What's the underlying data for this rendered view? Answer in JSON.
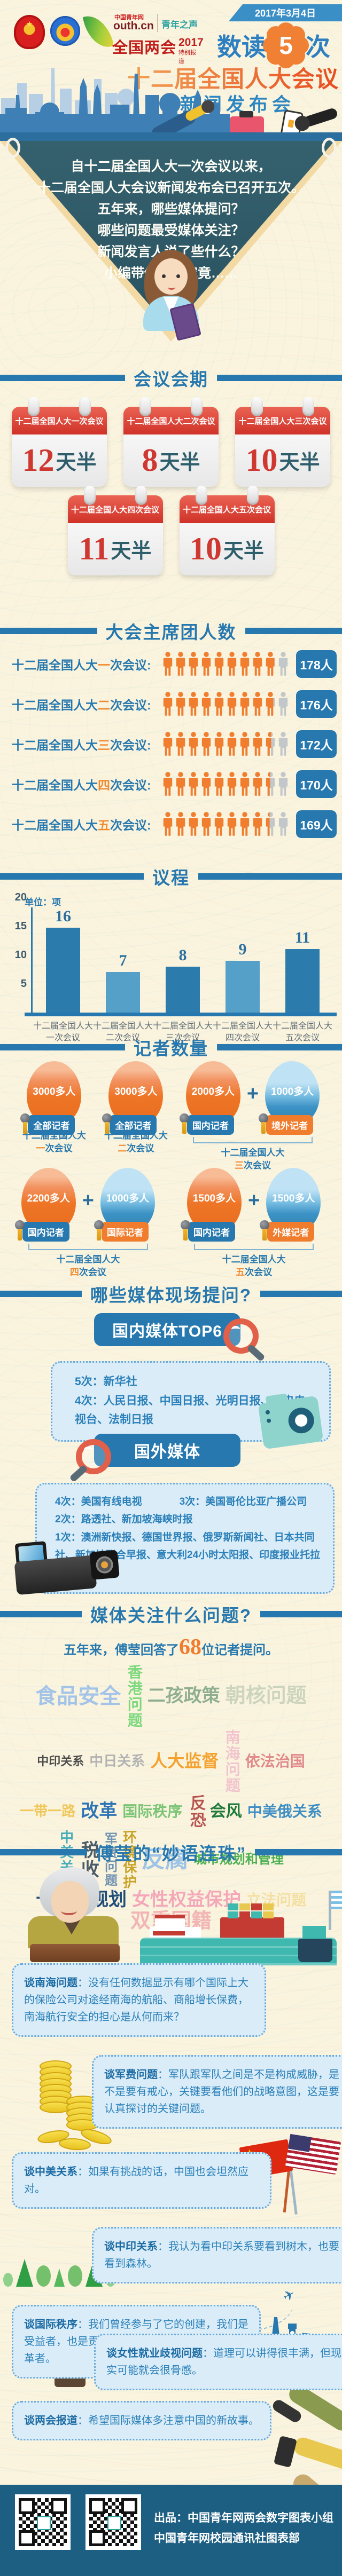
{
  "date": "2017年3月4日",
  "colors": {
    "accent_blue": "#2778ae",
    "accent_orange": "#f07e2e",
    "calendar_red": "#d03228",
    "board_teal": "#2e5f6d",
    "footer_blue": "#1d5f83"
  },
  "logos": {
    "cyw": "中国青年网",
    "youthcn": "outh.cn",
    "voice": "青年之声",
    "lianghui": "全国两会",
    "year": "2017",
    "special": "特别报道"
  },
  "title": {
    "p1": "数读",
    "num": "5",
    "p2": "次",
    "line2": "十二届全国人大会议",
    "line3": "新闻发布会"
  },
  "board": {
    "lines": [
      "自十二届全国人大一次会议以来，",
      "十二届全国人大会议新闻发布会已召开五次。",
      "五年来，哪些媒体提问？",
      "哪些问题最受媒体关注？",
      "新闻发言人说了些什么？",
      "小编带你一探究竟……"
    ]
  },
  "duration": {
    "heading": "会议会期",
    "items": [
      {
        "title": "十二届全国人大一次会议",
        "days": "12",
        "unit": "天半"
      },
      {
        "title": "十二届全国人大二次会议",
        "days": "8",
        "unit": "天半"
      },
      {
        "title": "十二届全国人大三次会议",
        "days": "10",
        "unit": "天半"
      },
      {
        "title": "十二届全国人大四次会议",
        "days": "11",
        "unit": "天半"
      },
      {
        "title": "十二届全国人大五次会议",
        "days": "10",
        "unit": "天半"
      }
    ]
  },
  "presidium": {
    "heading": "大会主席团人数",
    "rows": [
      {
        "prefix": "十二届全国人大",
        "ord": "一",
        "suffix": "次会议:",
        "count": 178,
        "badge": "178人"
      },
      {
        "prefix": "十二届全国人大",
        "ord": "二",
        "suffix": "次会议:",
        "count": 176,
        "badge": "176人"
      },
      {
        "prefix": "十二届全国人大",
        "ord": "三",
        "suffix": "次会议:",
        "count": 172,
        "badge": "172人"
      },
      {
        "prefix": "十二届全国人大",
        "ord": "四",
        "suffix": "次会议:",
        "count": 170,
        "badge": "170人"
      },
      {
        "prefix": "十二届全国人大",
        "ord": "五",
        "suffix": "次会议:",
        "count": 169,
        "badge": "169人"
      }
    ]
  },
  "agenda": {
    "heading": "议程",
    "unit": "单位：项",
    "cats": [
      {
        "l1": "十二届全国人大",
        "l2": "一次会议"
      },
      {
        "l1": "十二届全国人大",
        "l2": "二次会议"
      },
      {
        "l1": "十二届全国人大",
        "l2": "三次会议"
      },
      {
        "l1": "十二届全国人大",
        "l2": "四次会议"
      },
      {
        "l1": "十二届全国人大",
        "l2": "五次会议"
      }
    ]
  },
  "reporters": {
    "heading": "记者数量",
    "plus": "+",
    "groups": [
      {
        "session": {
          "prefix": "十二届全国人大",
          "ord": "一",
          "suffix": "次会议"
        },
        "balloons": [
          {
            "value": "3000多人",
            "tag": "全部记者",
            "balloon": "orange",
            "tag_style": "blue"
          }
        ]
      },
      {
        "session": {
          "prefix": "十二届全国人大",
          "ord": "二",
          "suffix": "次会议"
        },
        "balloons": [
          {
            "value": "3000多人",
            "tag": "全部记者",
            "balloon": "orange",
            "tag_style": "blue"
          }
        ]
      },
      {
        "session": {
          "prefix": "十二届全国人大",
          "ord": "三",
          "suffix": "次会议"
        },
        "balloons": [
          {
            "value": "2000多人",
            "tag": "国内记者",
            "balloon": "orange",
            "tag_style": "blue"
          },
          {
            "value": "1000多人",
            "tag": "境外记者",
            "balloon": "blue",
            "tag_style": "orange"
          }
        ]
      },
      {
        "session": {
          "prefix": "十二届全国人大",
          "ord": "四",
          "suffix": "次会议"
        },
        "balloons": [
          {
            "value": "2200多人",
            "tag": "国内记者",
            "balloon": "orange",
            "tag_style": "blue"
          },
          {
            "value": "1000多人",
            "tag": "国际记者",
            "balloon": "blue",
            "tag_style": "orange"
          }
        ]
      },
      {
        "session": {
          "prefix": "十二届全国人大",
          "ord": "五",
          "suffix": "次会议"
        },
        "balloons": [
          {
            "value": "1500多人",
            "tag": "国内记者",
            "balloon": "orange",
            "tag_style": "blue"
          },
          {
            "value": "1500多人",
            "tag": "外媒记者",
            "balloon": "blue",
            "tag_style": "orange"
          }
        ]
      }
    ]
  },
  "media": {
    "heading": "哪些媒体现场提问?",
    "domestic_title": "国内媒体TOP6",
    "domestic_lines": [
      "5次：新华社",
      "4次：人民日报、中国日报、光明日报、中央电视台、法制日报"
    ],
    "foreign_title": "国外媒体",
    "foreign_line1a": "4次：美国有线电视",
    "foreign_line1b": "3次：美国哥伦比亚广播公司",
    "foreign_line2": "2次：路透社、新加坡海峡时报",
    "foreign_line3": "1次：澳洲新快报、德国世界报、俄罗斯新闻社、日本共同社、新加坡联合早报、意大利24小时太阳报、印度报业托拉斯"
  },
  "focus": {
    "heading": "媒体关注什么问题?",
    "intro_prefix": "五年来，傅莹回答了",
    "intro_number": "68",
    "intro_suffix": "位记者提问。",
    "wordcloud": [
      {
        "t": "食品安全",
        "c": "#a3c3e8",
        "s": 40,
        "v": 0
      },
      {
        "t": "香港问题",
        "c": "#7ed87e",
        "s": 28,
        "v": 1
      },
      {
        "t": "二孩政策",
        "c": "#8fae8f",
        "s": 34,
        "v": 0
      },
      {
        "t": "朝核问题",
        "c": "#cdd4be",
        "s": 38,
        "v": 0
      },
      {
        "t": "中印关系",
        "c": "#4d4d4d",
        "s": 22,
        "v": 0
      },
      {
        "t": "中日关系",
        "c": "#b3b3b3",
        "s": 26,
        "v": 0
      },
      {
        "t": "人大监督",
        "c": "#f5a12d",
        "s": 32,
        "v": 0
      },
      {
        "t": "南海问题",
        "c": "#f2c4ce",
        "s": 28,
        "v": 1
      },
      {
        "t": "依法治国",
        "c": "#e08a8a",
        "s": 28,
        "v": 0
      },
      {
        "t": "一带一路",
        "c": "#f0c75a",
        "s": 26,
        "v": 0
      },
      {
        "t": "改革",
        "c": "#2e74b5",
        "s": 34,
        "v": 0
      },
      {
        "t": "国际秩序",
        "c": "#7cc576",
        "s": 28,
        "v": 0
      },
      {
        "t": "反恐",
        "c": "#b85450",
        "s": 30,
        "v": 1
      },
      {
        "t": "会风",
        "c": "#1f7a3c",
        "s": 30,
        "v": 0
      },
      {
        "t": "中美俄关系",
        "c": "#3e8ec4",
        "s": 28,
        "v": 0
      },
      {
        "t": "中美关系",
        "c": "#4aacb8",
        "s": 26,
        "v": 1
      },
      {
        "t": "税收",
        "c": "#4a5a68",
        "s": 34,
        "v": 1
      },
      {
        "t": "军费问题",
        "c": "#7293b0",
        "s": 24,
        "v": 1
      },
      {
        "t": "环境保护",
        "c": "#c9a227",
        "s": 26,
        "v": 1
      },
      {
        "t": "反腐",
        "c": "#9dc3e6",
        "s": 44,
        "v": 0
      },
      {
        "t": "城市规划和管理",
        "c": "#4caf50",
        "s": 24,
        "v": 0
      },
      {
        "t": "十三五规划",
        "c": "#1f4e79",
        "s": 34,
        "v": 0
      },
      {
        "t": "女性权益保护",
        "c": "#f4a7b9",
        "s": 34,
        "v": 0
      },
      {
        "t": "立法问题",
        "c": "#f5dfa0",
        "s": 28,
        "v": 0
      },
      {
        "t": "双重国籍",
        "c": "#f2b5b5",
        "s": 38,
        "v": 0
      }
    ]
  },
  "quotes": {
    "heading": "傅莹的“妙语连珠”",
    "items": [
      {
        "label": "谈南海问题",
        "text": "：没有任何数据显示有哪个国际上大的保险公司对途经南海的航船、商船增长保费，南海航行安全的担心是从何而来？"
      },
      {
        "label": "谈军费问题",
        "text": "：军队跟军队之间是不是构成威胁，是不是要有戒心，关键要看他们的战略意图，这是要认真探讨的关键问题。"
      },
      {
        "label": "谈中美关系",
        "text": "：如果有挑战的话，中国也会坦然应对。"
      },
      {
        "label": "谈中印关系",
        "text": "：我认为看中印关系要看到树木，也要看到森林。"
      },
      {
        "label": "谈国际秩序",
        "text": "：我们曾经参与了它的创建，我们是受益者，也是贡献者，同时我们也愿意做它的改革者。"
      },
      {
        "label": "谈女性就业歧视问题",
        "text": "：道理可以讲得很丰满，但现实可能就会很骨感。"
      },
      {
        "label": "谈两会报道",
        "text": "：希望国际媒体多注意中国的新故事。"
      }
    ]
  },
  "footer": {
    "line1": "出品：中国青年网两会数字图表小组",
    "line2": "中国青年网校园通讯社图表部"
  },
  "chart_data": [
    {
      "type": "bar",
      "title": "议程",
      "unit_label": "单位：项",
      "categories": [
        "十二届全国人大一次会议",
        "十二届全国人大二次会议",
        "十二届全国人大三次会议",
        "十二届全国人大四次会议",
        "十二届全国人大五次会议"
      ],
      "values": [
        16,
        7,
        8,
        9,
        11
      ],
      "ylim": [
        0,
        20
      ],
      "yticks": [
        5,
        10,
        15,
        20
      ],
      "grid": false,
      "legend": "none"
    },
    {
      "type": "bar",
      "title": "大会主席团人数",
      "categories": [
        "十二届全国人大一次会议",
        "十二届全国人大二次会议",
        "十二届全国人大三次会议",
        "十二届全国人大四次会议",
        "十二届全国人大五次会议"
      ],
      "values": [
        178,
        176,
        172,
        170,
        169
      ],
      "unit": "人",
      "style": "pictograph-10-person-icons"
    },
    {
      "type": "bar",
      "title": "会议会期",
      "categories": [
        "十二届全国人大一次会议",
        "十二届全国人大二次会议",
        "十二届全国人大三次会议",
        "十二届全国人大四次会议",
        "十二届全国人大五次会议"
      ],
      "values": [
        12.5,
        8.5,
        10.5,
        11.5,
        10.5
      ],
      "unit": "天"
    },
    {
      "type": "table",
      "title": "记者数量",
      "rows": [
        [
          "十二届全国人大一次会议",
          "全部记者 3000多人"
        ],
        [
          "十二届全国人大二次会议",
          "全部记者 3000多人"
        ],
        [
          "十二届全国人大三次会议",
          "国内记者 2000多人 + 境外记者 1000多人"
        ],
        [
          "十二届全国人大四次会议",
          "国内记者 2200多人 + 国际记者 1000多人"
        ],
        [
          "十二届全国人大五次会议",
          "国内记者 1500多人 + 外媒记者 1500多人"
        ]
      ]
    }
  ]
}
